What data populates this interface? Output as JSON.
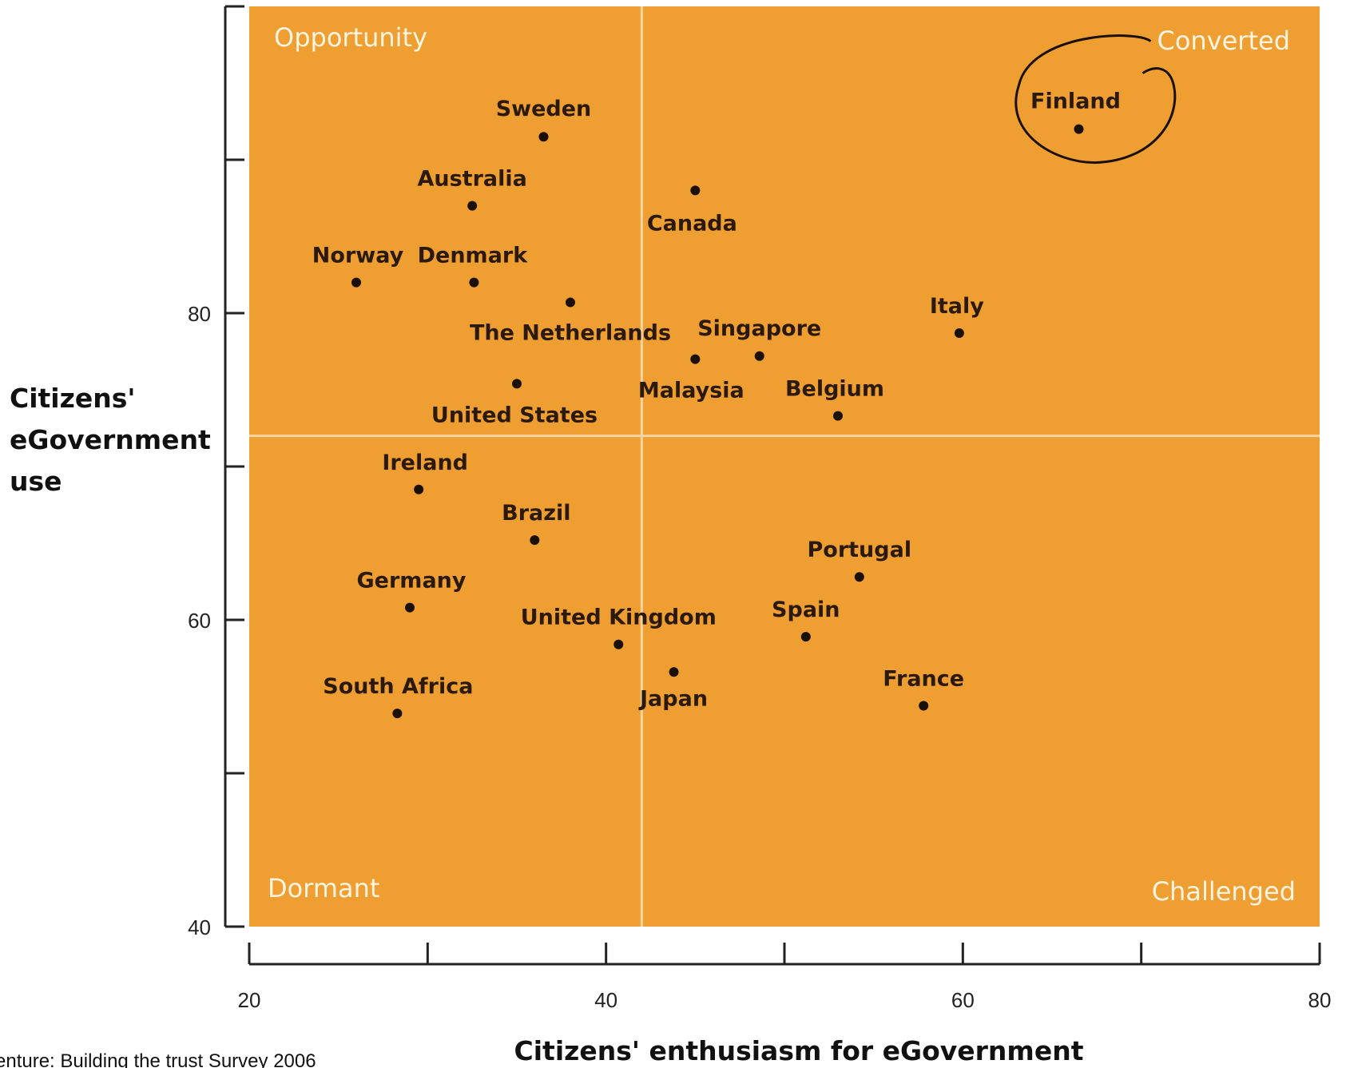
{
  "chart_data": {
    "type": "scatter",
    "xlabel": "Citizens' enthusiasm for eGovernment",
    "ylabel": "Citizens' eGovernment use",
    "xlim": [
      20,
      80
    ],
    "ylim": [
      40,
      100
    ],
    "x_tick_labels": [
      "20",
      "40",
      "60",
      "80"
    ],
    "y_tick_labels": [
      "40",
      "60",
      "80"
    ],
    "quadrant_divider": {
      "x": 42,
      "y": 72
    },
    "quadrant_labels": {
      "top_left": "Opportunity",
      "top_right": "Converted",
      "bottom_left": "Dormant",
      "bottom_right": "Challenged"
    },
    "points": [
      {
        "label": "Finland",
        "x": 66.5,
        "y": 92.0
      },
      {
        "label": "Sweden",
        "x": 36.5,
        "y": 91.5
      },
      {
        "label": "Canada",
        "x": 45.0,
        "y": 88.0
      },
      {
        "label": "Australia",
        "x": 32.5,
        "y": 87.0
      },
      {
        "label": "Norway",
        "x": 26.0,
        "y": 82.0
      },
      {
        "label": "Denmark",
        "x": 32.6,
        "y": 82.0
      },
      {
        "label": "The Netherlands",
        "x": 38.0,
        "y": 80.7
      },
      {
        "label": "Italy",
        "x": 59.8,
        "y": 78.7
      },
      {
        "label": "Singapore",
        "x": 48.6,
        "y": 77.2
      },
      {
        "label": "Malaysia",
        "x": 45.0,
        "y": 77.0
      },
      {
        "label": "United States",
        "x": 35.0,
        "y": 75.4
      },
      {
        "label": "Belgium",
        "x": 53.0,
        "y": 73.3
      },
      {
        "label": "Ireland",
        "x": 29.5,
        "y": 68.5
      },
      {
        "label": "Brazil",
        "x": 36.0,
        "y": 65.2
      },
      {
        "label": "Portugal",
        "x": 54.2,
        "y": 62.8
      },
      {
        "label": "Germany",
        "x": 29.0,
        "y": 60.8
      },
      {
        "label": "Spain",
        "x": 51.2,
        "y": 58.9
      },
      {
        "label": "United Kingdom",
        "x": 40.7,
        "y": 58.4
      },
      {
        "label": "Japan",
        "x": 43.8,
        "y": 56.6
      },
      {
        "label": "France",
        "x": 57.8,
        "y": 54.4
      },
      {
        "label": "South Africa",
        "x": 28.3,
        "y": 53.9
      }
    ],
    "highlighted_point": "Finland"
  },
  "source_note": "enture: Building the trust Survey 2006",
  "colors": {
    "plot_fill": "#ef9e32",
    "divider": "#f6d4a0",
    "point": "#1a1005",
    "quadrant_text": "#fff4e0",
    "axis": "#222222"
  }
}
